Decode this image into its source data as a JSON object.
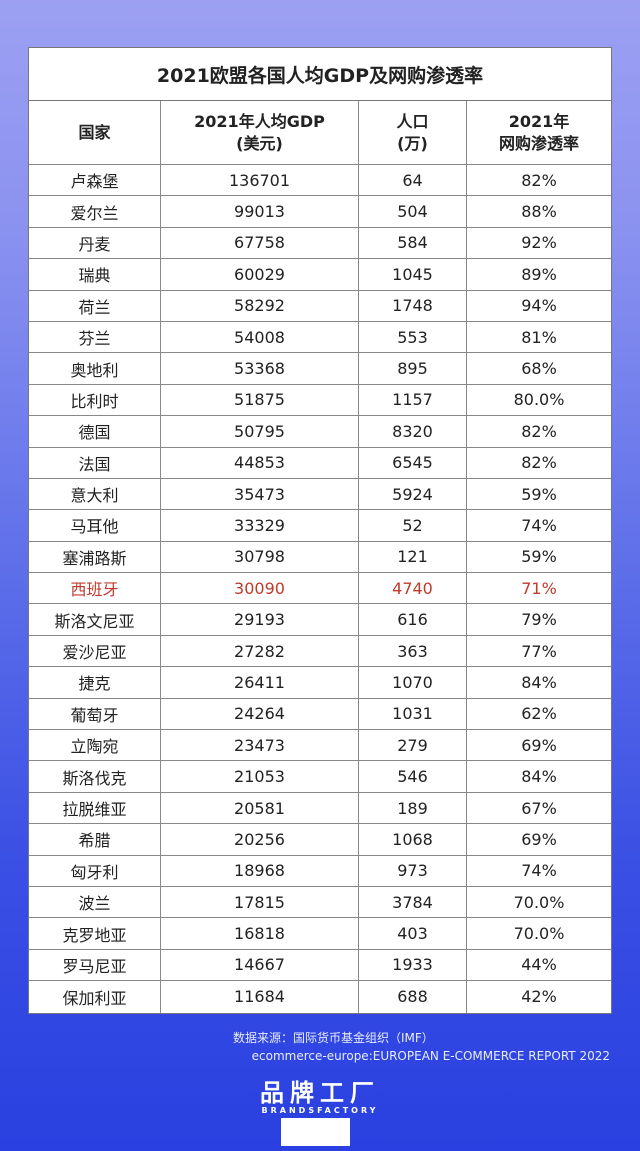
{
  "title": "2021欧盟各国人均GDP及网购渗透率",
  "headers": [
    {
      "l1": "国家",
      "l2": ""
    },
    {
      "l1": "2021年人均GDP",
      "l2": "(美元)"
    },
    {
      "l1": "人口",
      "l2": "(万)"
    },
    {
      "l1": "2021年",
      "l2": "网购渗透率"
    }
  ],
  "highlight_color": "#c0392b",
  "rows": [
    [
      "卢森堡",
      "136701",
      "64",
      "82%"
    ],
    [
      "爱尔兰",
      "99013",
      "504",
      "88%"
    ],
    [
      "丹麦",
      "67758",
      "584",
      "92%"
    ],
    [
      "瑞典",
      "60029",
      "1045",
      "89%"
    ],
    [
      "荷兰",
      "58292",
      "1748",
      "94%"
    ],
    [
      "芬兰",
      "54008",
      "553",
      "81%"
    ],
    [
      "奥地利",
      "53368",
      "895",
      "68%"
    ],
    [
      "比利时",
      "51875",
      "1157",
      "80.0%"
    ],
    [
      "德国",
      "50795",
      "8320",
      "82%"
    ],
    [
      "法国",
      "44853",
      "6545",
      "82%"
    ],
    [
      "意大利",
      "35473",
      "5924",
      "59%"
    ],
    [
      "马耳他",
      "33329",
      "52",
      "74%"
    ],
    [
      "塞浦路斯",
      "30798",
      "121",
      "59%"
    ],
    [
      "西班牙",
      "30090",
      "4740",
      "71%"
    ],
    [
      "斯洛文尼亚",
      "29193",
      "616",
      "79%"
    ],
    [
      "爱沙尼亚",
      "27282",
      "363",
      "77%"
    ],
    [
      "捷克",
      "26411",
      "1070",
      "84%"
    ],
    [
      "葡萄牙",
      "24264",
      "1031",
      "62%"
    ],
    [
      "立陶宛",
      "23473",
      "279",
      "69%"
    ],
    [
      "斯洛伐克",
      "21053",
      "546",
      "84%"
    ],
    [
      "拉脱维亚",
      "20581",
      "189",
      "67%"
    ],
    [
      "希腊",
      "20256",
      "1068",
      "69%"
    ],
    [
      "匈牙利",
      "18968",
      "973",
      "74%"
    ],
    [
      "波兰",
      "17815",
      "3784",
      "70.0%"
    ],
    [
      "克罗地亚",
      "16818",
      "403",
      "70.0%"
    ],
    [
      "罗马尼亚",
      "14667",
      "1933",
      "44%"
    ],
    [
      "保加利亚",
      "11684",
      "688",
      "42%"
    ]
  ],
  "highlighted_row": "西班牙",
  "source_line1": "数据来源：国际货币基金组织（IMF）",
  "source_line2": "ecommerce-europe:EUROPEAN E-COMMERCE REPORT 2022",
  "logo": {
    "cn": "品牌工厂",
    "en": "BRANDSFACTORY"
  }
}
